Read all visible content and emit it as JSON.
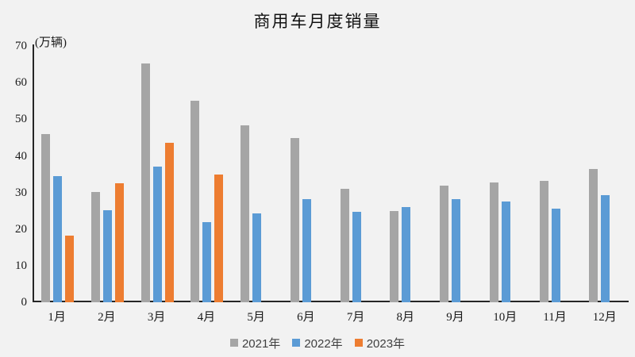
{
  "chart_data": {
    "type": "bar",
    "title": "商用车月度销量",
    "unit_label": "(万辆)",
    "categories": [
      "1月",
      "2月",
      "3月",
      "4月",
      "5月",
      "6月",
      "7月",
      "8月",
      "9月",
      "10月",
      "11月",
      "12月"
    ],
    "series": [
      {
        "name": "2021年",
        "color": "#A5A5A5",
        "values": [
          45.9,
          30.2,
          65.2,
          55.0,
          48.3,
          44.8,
          31.1,
          24.9,
          31.8,
          32.7,
          33.1,
          36.5
        ]
      },
      {
        "name": "2022年",
        "color": "#5B9BD5",
        "values": [
          34.5,
          25.1,
          37.1,
          21.8,
          24.2,
          28.2,
          24.7,
          26.0,
          28.1,
          27.6,
          25.5,
          29.2
        ]
      },
      {
        "name": "2023年",
        "color": "#ED7D31",
        "values": [
          18.3,
          32.5,
          43.5,
          35.0,
          null,
          null,
          null,
          null,
          null,
          null,
          null,
          null
        ]
      }
    ],
    "ylabel": "",
    "xlabel": "",
    "ylim": [
      0,
      70
    ],
    "yticks": [
      0,
      10,
      20,
      30,
      40,
      50,
      60,
      70
    ],
    "grid": false,
    "legend_position": "bottom",
    "background_color": "#f2f2f2",
    "axis_color": "#262626"
  }
}
